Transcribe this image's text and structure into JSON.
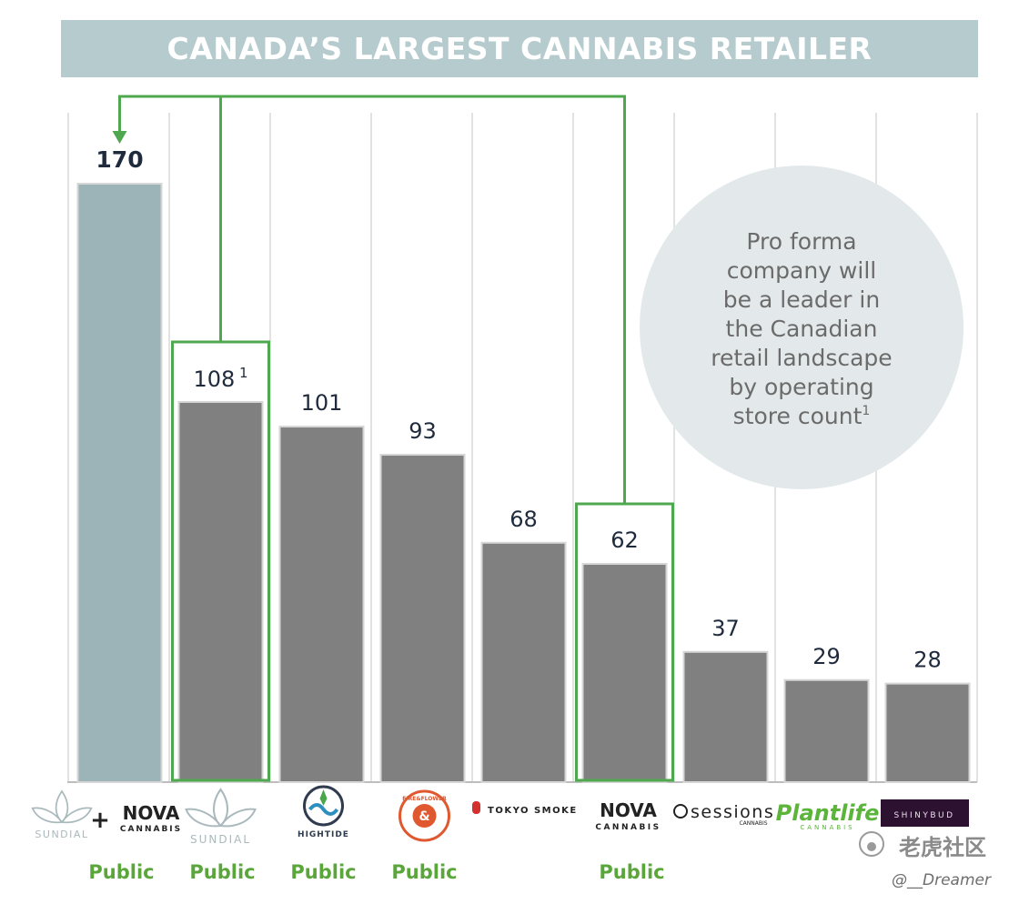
{
  "header": {
    "title": "CANADA’S LARGEST CANNABIS RETAILER"
  },
  "callout": {
    "lines": [
      "Pro forma",
      "company will",
      "be a leader in",
      "the Canadian",
      "retail landscape",
      "by operating",
      "store count"
    ],
    "superscript": "1"
  },
  "chart_data": {
    "type": "bar",
    "title": "",
    "xlabel": "",
    "ylabel": "",
    "ylim": [
      0,
      180
    ],
    "grid": true,
    "categories": [
      "Sundial + Nova Cannabis",
      "Sundial",
      "High Tide",
      "Fire & Flower",
      "Tokyo Smoke",
      "Nova Cannabis",
      "Sessions Cannabis",
      "Plantlife",
      "Shinybud"
    ],
    "values": [
      170,
      108,
      101,
      93,
      68,
      62,
      37,
      29,
      28
    ],
    "labels": [
      "170",
      "108",
      "101",
      "93",
      "68",
      "62",
      "37",
      "29",
      "28"
    ],
    "label_superscripts": [
      "",
      "1",
      "",
      "",
      "",
      "",
      "",
      "",
      ""
    ],
    "bar_colors": [
      "#9cb3b8",
      "#808080",
      "#808080",
      "#808080",
      "#808080",
      "#808080",
      "#808080",
      "#808080",
      "#808080"
    ],
    "highlighted": [
      1,
      5
    ],
    "public_labels": [
      "Public",
      "Public",
      "Public",
      "Public",
      "",
      "Public",
      "",
      "",
      ""
    ]
  },
  "logos": {
    "sundial": "SUNDIAL",
    "plus": "+",
    "nova_top": "NOVA",
    "nova_bottom": "CANNABIS",
    "hightide": "HIGHTIDE",
    "fireflower": "FIRE&FLOWER",
    "tokyo": "TOKYO SMOKE",
    "sessions": "sessions",
    "sessions_sub": "CANNABIS",
    "plantlife": "Plantlife",
    "plantlife_sub": "CANNABIS",
    "shinybud": "SHINYBUD"
  },
  "watermark": {
    "site": "老虎社区",
    "user": "@__Dreamer"
  },
  "colors": {
    "banner": "#b5cbce",
    "bar": "#808080",
    "combined_bar": "#9cb3b8",
    "highlight": "#4fa84f",
    "public": "#5aa63b",
    "label": "#1f2b3d",
    "callout_bg": "#e3e9ea"
  }
}
